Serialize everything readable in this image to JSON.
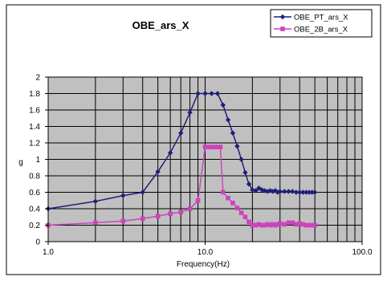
{
  "chart_data": {
    "type": "line",
    "title": "OBE_ars_X",
    "xlabel": "Frequency(Hz)",
    "ylabel": "g",
    "x_scale": "log",
    "xlim": [
      1,
      100
    ],
    "ylim": [
      0,
      2
    ],
    "x_ticks": [
      1,
      10,
      100
    ],
    "x_tick_labels": [
      "1.0",
      "10.0",
      "100.0"
    ],
    "y_ticks": [
      0,
      0.2,
      0.4,
      0.6,
      0.8,
      1,
      1.2,
      1.4,
      1.6,
      1.8,
      2
    ],
    "y_tick_labels": [
      "0",
      "0.2",
      "0.4",
      "0.6",
      "0.8",
      "1",
      "1.2",
      "1.4",
      "1.6",
      "1.8",
      "2"
    ],
    "grid": true,
    "plot_background": "#c0c0c0",
    "legend_position": "top-right",
    "series": [
      {
        "name": "OBE_PT_ars_X",
        "color": "#1f1f7a",
        "marker": "diamond",
        "x": [
          1.0,
          2.0,
          3.0,
          4.0,
          5.0,
          6.0,
          7.0,
          8.0,
          9.0,
          10.0,
          11.0,
          12.0,
          13.0,
          14.0,
          15.0,
          16.0,
          17.0,
          18.0,
          19.0,
          20.0,
          21.0,
          22.0,
          23.0,
          24.0,
          25.0,
          26.0,
          27.0,
          28.0,
          29.0,
          30.0,
          32.0,
          34.0,
          36.0,
          38.0,
          40.0,
          42.0,
          44.0,
          46.0,
          48.0,
          50.0
        ],
        "y": [
          0.4,
          0.49,
          0.56,
          0.6,
          0.85,
          1.08,
          1.32,
          1.57,
          1.8,
          1.8,
          1.8,
          1.8,
          1.66,
          1.48,
          1.32,
          1.16,
          1.0,
          0.84,
          0.7,
          0.63,
          0.62,
          0.65,
          0.63,
          0.62,
          0.61,
          0.62,
          0.61,
          0.62,
          0.6,
          0.61,
          0.61,
          0.61,
          0.61,
          0.6,
          0.6,
          0.6,
          0.6,
          0.6,
          0.6,
          0.6
        ]
      },
      {
        "name": "OBE_2B_ars_X",
        "color": "#cc44bb",
        "marker": "square",
        "x": [
          1.0,
          2.0,
          3.0,
          4.0,
          5.0,
          6.0,
          7.0,
          8.0,
          9.0,
          10.0,
          10.5,
          11.0,
          11.5,
          12.0,
          12.5,
          13.0,
          14.0,
          15.0,
          16.0,
          17.0,
          18.0,
          19.0,
          20.0,
          21.0,
          22.0,
          23.0,
          24.0,
          25.0,
          26.0,
          27.0,
          28.0,
          29.0,
          30.0,
          32.0,
          34.0,
          36.0,
          38.0,
          40.0,
          42.0,
          44.0,
          46.0,
          48.0,
          50.0
        ],
        "y": [
          0.2,
          0.23,
          0.25,
          0.28,
          0.31,
          0.34,
          0.36,
          0.4,
          0.5,
          1.15,
          1.15,
          1.15,
          1.15,
          1.15,
          1.15,
          0.6,
          0.53,
          0.47,
          0.41,
          0.35,
          0.3,
          0.24,
          0.2,
          0.2,
          0.21,
          0.2,
          0.2,
          0.21,
          0.2,
          0.21,
          0.2,
          0.21,
          0.22,
          0.21,
          0.23,
          0.23,
          0.21,
          0.22,
          0.21,
          0.2,
          0.2,
          0.2,
          0.2
        ]
      }
    ]
  }
}
